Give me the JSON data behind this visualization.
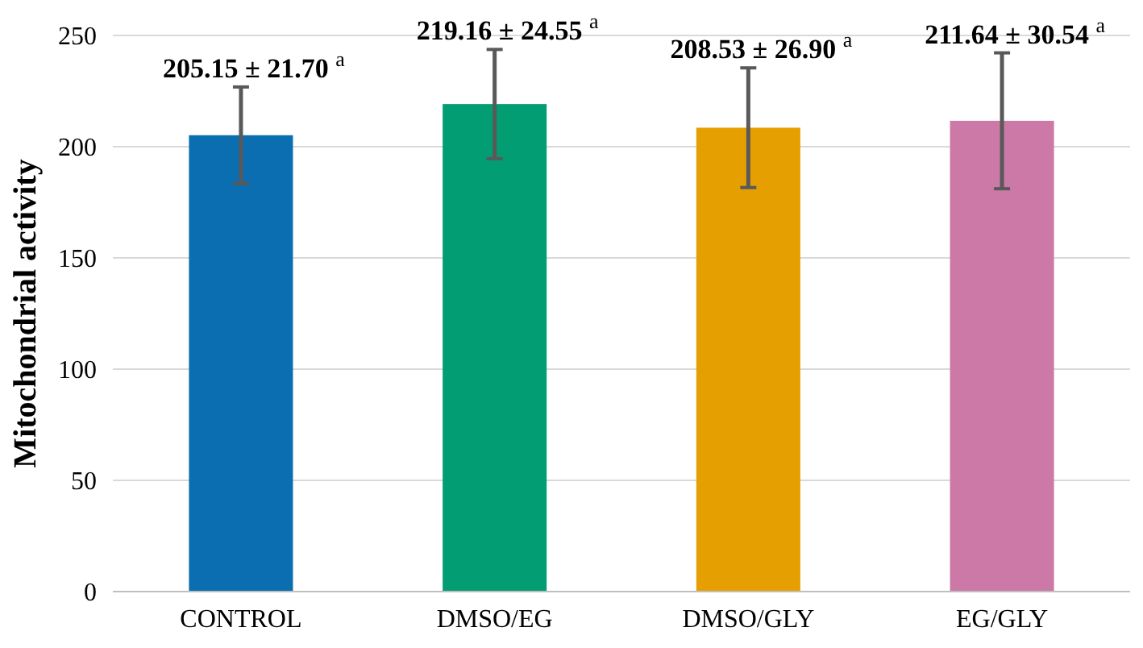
{
  "chart_data": {
    "type": "bar",
    "ylabel": "Mitochondrial activity",
    "categories": [
      "CONTROL",
      "DMSO/EG",
      "DMSO/GLY",
      "EG/GLY"
    ],
    "values": [
      205.15,
      219.16,
      208.53,
      211.64
    ],
    "errors": [
      21.7,
      24.55,
      26.9,
      30.54
    ],
    "value_labels": [
      "205.15 ± 21.70 $^{a}$",
      "219.16 ± 24.55 $^{a}$",
      "208.53 ± 26.90 $^{a}$",
      "211.64 ± 30.54 $^{a}$"
    ],
    "colors": [
      "#0a6eb0",
      "#039d74",
      "#e69f00",
      "#cc79a7"
    ],
    "ylim": [
      0,
      250
    ],
    "yticks": [
      0,
      50,
      100,
      150,
      200,
      250
    ],
    "grid": "y"
  }
}
